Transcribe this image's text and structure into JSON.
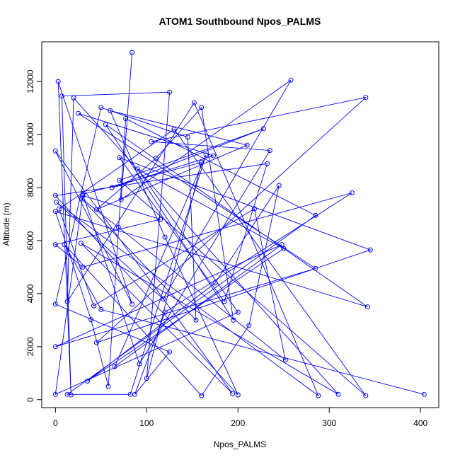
{
  "chart_data": {
    "type": "line",
    "title": "ATOM1 Southbound Npos_PALMS",
    "xlabel": "Npos_PALMS",
    "ylabel": "Altitude (m)",
    "xlim": [
      -15,
      420
    ],
    "ylim": [
      -300,
      13500
    ],
    "x_ticks": [
      0,
      100,
      200,
      300,
      400
    ],
    "x_tick_labels": [
      "0",
      "100",
      "200",
      "300",
      "400"
    ],
    "y_ticks": [
      0,
      2000,
      4000,
      6000,
      8000,
      10000,
      12000
    ],
    "y_tick_labels": [
      "0",
      "2000",
      "4000",
      "6000",
      "8000",
      "10000",
      "12000"
    ],
    "grid": false,
    "markers": "open-circle",
    "series": [
      {
        "color": "#0000ff",
        "points": [
          [
            84,
            13100
          ],
          [
            72,
            7550
          ],
          [
            258,
            12050
          ],
          [
            118,
            3800
          ],
          [
            1,
            7450
          ],
          [
            288,
            150
          ],
          [
            152,
            11200
          ],
          [
            13,
            3700
          ],
          [
            20,
            11380
          ],
          [
            310,
            200
          ],
          [
            28,
            5900
          ],
          [
            194,
            230
          ],
          [
            0,
            9380
          ],
          [
            84,
            3600
          ],
          [
            3,
            12000
          ],
          [
            17,
            180
          ],
          [
            7,
            11450
          ],
          [
            125,
            11600
          ],
          [
            100,
            800
          ],
          [
            160,
            8950
          ],
          [
            30,
            7750
          ],
          [
            92,
            1350
          ],
          [
            235,
            9400
          ],
          [
            105,
            9730
          ],
          [
            340,
            11400
          ],
          [
            45,
            2150
          ],
          [
            345,
            5650
          ],
          [
            70,
            9130
          ],
          [
            185,
            3700
          ],
          [
            232,
            8900
          ],
          [
            0,
            7700
          ],
          [
            200,
            180
          ],
          [
            120,
            6130
          ],
          [
            60,
            10900
          ],
          [
            210,
            9600
          ],
          [
            45,
            7170
          ],
          [
            110,
            9100
          ],
          [
            160,
            11020
          ],
          [
            195,
            3000
          ],
          [
            55,
            10380
          ],
          [
            342,
            3500
          ],
          [
            0,
            7100
          ],
          [
            39,
            3020
          ],
          [
            58,
            500
          ],
          [
            77,
            10600
          ],
          [
            285,
            6950
          ],
          [
            13,
            200
          ],
          [
            82,
            200
          ],
          [
            165,
            9230
          ],
          [
            65,
            1250
          ],
          [
            248,
            5850
          ],
          [
            0,
            2000
          ],
          [
            285,
            4950
          ],
          [
            25,
            10800
          ],
          [
            173,
            9200
          ],
          [
            62,
            8000
          ],
          [
            228,
            10220
          ],
          [
            70,
            8270
          ],
          [
            340,
            150
          ],
          [
            130,
            10200
          ],
          [
            4,
            7190
          ],
          [
            42,
            3540
          ],
          [
            218,
            7200
          ],
          [
            252,
            1500
          ],
          [
            69,
            6500
          ],
          [
            28,
            7600
          ],
          [
            154,
            3000
          ],
          [
            145,
            9900
          ],
          [
            50,
            11020
          ],
          [
            0,
            3600
          ],
          [
            125,
            1800
          ],
          [
            87,
            200
          ],
          [
            120,
            3300
          ],
          [
            325,
            7800
          ],
          [
            30,
            5000
          ],
          [
            0,
            5850
          ],
          [
            115,
            6800
          ],
          [
            30,
            7700
          ],
          [
            0,
            200
          ],
          [
            200,
            3300
          ],
          [
            90,
            8700
          ],
          [
            250,
            5700
          ],
          [
            35,
            700
          ],
          [
            175,
            4400
          ],
          [
            245,
            8080
          ],
          [
            212,
            2800
          ],
          [
            160,
            150
          ],
          [
            10,
            5850
          ],
          [
            50,
            3400
          ],
          [
            404,
            200
          ]
        ]
      }
    ]
  }
}
